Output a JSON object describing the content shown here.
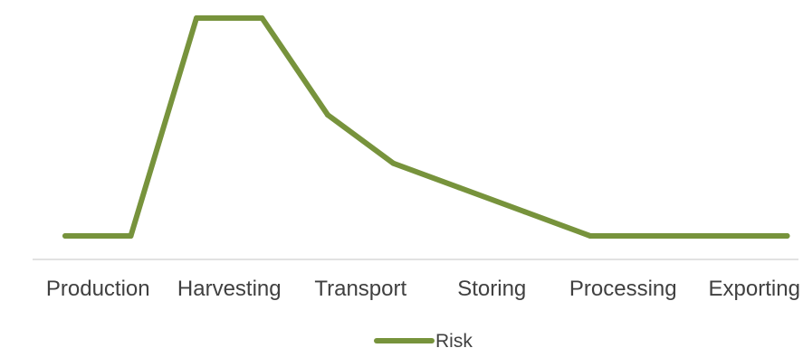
{
  "chart_data": {
    "type": "line",
    "categories": [
      "Production",
      "",
      "Harvesting",
      "",
      "Transport",
      "",
      "Storing",
      "",
      "Processing",
      "",
      "Exporting",
      ""
    ],
    "series": [
      {
        "name": "Risk",
        "color": "#77933c",
        "values": [
          0,
          0,
          9,
          9,
          5,
          3,
          2,
          1,
          0,
          0,
          0,
          0
        ]
      }
    ],
    "ylim": [
      0,
      9
    ],
    "grid": false,
    "legend": "bottom"
  }
}
